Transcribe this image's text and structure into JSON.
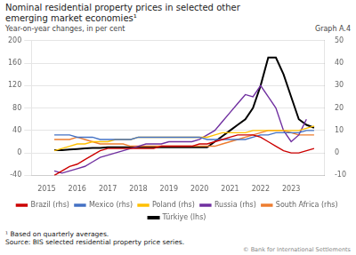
{
  "chart_data": {
    "type": "line",
    "title": [
      "Nominal residential property prices in selected other",
      "emerging market economies¹"
    ],
    "subtitle": "Year-on-year changes, in per cent",
    "annotations": [
      "Graph A.4",
      "¹ Based on quarterly averages.",
      "Source: BIS selected residential property price series.",
      "© Bank for International Settlements"
    ],
    "x": [
      2015.25,
      2015.5,
      2015.75,
      2016.0,
      2016.25,
      2016.5,
      2016.75,
      2017.0,
      2017.25,
      2017.5,
      2017.75,
      2018.0,
      2018.25,
      2018.5,
      2018.75,
      2019.0,
      2019.25,
      2019.5,
      2019.75,
      2020.0,
      2020.25,
      2020.5,
      2020.75,
      2021.0,
      2021.25,
      2021.5,
      2021.75,
      2022.0,
      2022.25,
      2022.5,
      2022.75,
      2023.0,
      2023.25,
      2023.5,
      2023.75
    ],
    "xlim": [
      2014.5,
      2024.1
    ],
    "xticks": [
      2015,
      2016,
      2017,
      2018,
      2019,
      2020,
      2021,
      2022,
      2023
    ],
    "ylim": [
      -40,
      200
    ],
    "yticks": [
      -40,
      0,
      40,
      80,
      120,
      160,
      200
    ],
    "y2lim": [
      -10,
      50
    ],
    "y2ticks": [
      -10,
      0,
      10,
      20,
      30,
      40,
      50
    ],
    "grid": true,
    "legend": "bottom",
    "series": [
      {
        "name": "Brazil (rhs)",
        "color": "#cc0000",
        "axis": "y2",
        "values": [
          -10,
          -8,
          -6,
          -5,
          -3,
          -1,
          1,
          2,
          2,
          2,
          2,
          2,
          2,
          2,
          3,
          3,
          3,
          3,
          3,
          4,
          4,
          5,
          6,
          7,
          8,
          8,
          8,
          7,
          5,
          3,
          1,
          0,
          0,
          1,
          2
        ]
      },
      {
        "name": "Mexico (rhs)",
        "color": "#4472c4",
        "axis": "y2",
        "values": [
          8,
          8,
          8,
          7,
          7,
          7,
          6,
          6,
          6,
          6,
          6,
          7,
          7,
          7,
          7,
          7,
          7,
          7,
          7,
          7,
          6,
          6,
          6,
          6,
          6,
          6,
          7,
          8,
          8,
          9,
          9,
          9,
          9,
          10,
          10
        ]
      },
      {
        "name": "Poland (rhs)",
        "color": "#ffc000",
        "axis": "y2",
        "values": [
          1,
          2,
          3,
          4,
          4,
          5,
          5,
          5,
          6,
          6,
          6,
          7,
          7,
          7,
          7,
          7,
          7,
          7,
          7,
          7,
          7,
          8,
          9,
          9,
          9,
          9,
          10,
          10,
          10,
          10,
          10,
          10,
          10,
          11,
          12
        ]
      },
      {
        "name": "Russia (rhs)",
        "color": "#7030a0",
        "axis": "y2",
        "values": [
          -8,
          -9,
          -8,
          -7,
          -6,
          -4,
          -2,
          -1,
          0,
          1,
          2,
          3,
          4,
          4,
          4,
          5,
          5,
          5,
          5,
          6,
          8,
          10,
          14,
          18,
          22,
          26,
          25,
          30,
          25,
          20,
          10,
          5,
          8,
          15,
          null
        ]
      },
      {
        "name": "South Africa (rhs)",
        "color": "#ed7d31",
        "axis": "y2",
        "values": [
          6,
          6,
          6,
          7,
          6,
          5,
          4,
          4,
          4,
          4,
          3,
          3,
          3,
          3,
          3,
          3,
          3,
          3,
          3,
          3,
          3,
          3,
          4,
          5,
          6,
          7,
          8,
          9,
          10,
          10,
          10,
          9,
          8,
          8,
          8
        ]
      },
      {
        "name": "Türkiye (lhs)",
        "color": "#000000",
        "axis": "y",
        "values": [
          5,
          5,
          6,
          7,
          8,
          9,
          9,
          10,
          10,
          10,
          10,
          10,
          10,
          10,
          10,
          10,
          10,
          10,
          10,
          10,
          10,
          20,
          30,
          40,
          50,
          60,
          80,
          120,
          170,
          170,
          140,
          100,
          60,
          50,
          45
        ]
      }
    ]
  }
}
